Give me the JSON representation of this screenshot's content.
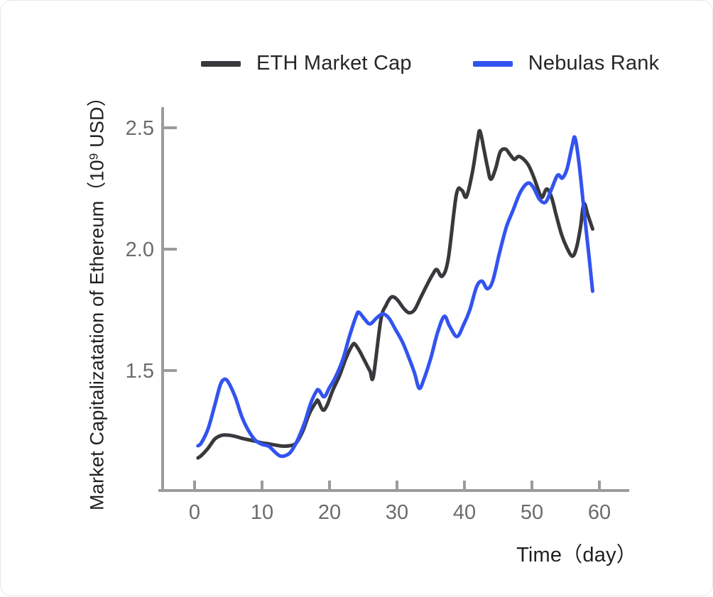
{
  "chart_data": {
    "type": "line",
    "title": "",
    "xlabel": "Time（day）",
    "ylabel": "Market Capitalizatation of Ethereum（10⁹ USD）",
    "ylabel_parts": {
      "prefix": "Market Capitalizatation of Ethereum（10",
      "sup": "9",
      "suffix": " USD）"
    },
    "x_ticks": {
      "values": [
        0,
        10,
        20,
        30,
        40,
        50,
        60
      ],
      "labels": [
        "0",
        "10",
        "20",
        "30",
        "40",
        "50",
        "60"
      ]
    },
    "y_ticks": {
      "values": [
        1.5,
        2.0,
        2.5
      ],
      "labels": [
        "1.5",
        "2.0",
        "2.5"
      ]
    },
    "xlim": [
      -5.4,
      64.4
    ],
    "ylim": [
      1.0,
      2.58
    ],
    "grid": false,
    "legend": {
      "position": "top-center",
      "entries": [
        "ETH Market Cap",
        "Nebulas Rank"
      ]
    },
    "axis_color": "#999b9d",
    "tick_label_color": "#6b6b6b",
    "series": [
      {
        "name": "ETH Market Cap",
        "color": "#39393d",
        "line_width": 5,
        "points": [
          [
            0.5,
            1.14
          ],
          [
            1,
            1.15
          ],
          [
            2,
            1.18
          ],
          [
            3,
            1.218
          ],
          [
            4,
            1.233
          ],
          [
            5,
            1.234
          ],
          [
            6,
            1.229
          ],
          [
            7,
            1.221
          ],
          [
            8,
            1.215
          ],
          [
            9,
            1.209
          ],
          [
            10,
            1.202
          ],
          [
            11,
            1.198
          ],
          [
            12,
            1.193
          ],
          [
            13,
            1.189
          ],
          [
            14,
            1.19
          ],
          [
            15,
            1.2
          ],
          [
            16,
            1.248
          ],
          [
            17,
            1.322
          ],
          [
            18,
            1.37
          ],
          [
            18.3,
            1.376
          ],
          [
            19,
            1.338
          ],
          [
            19.6,
            1.355
          ],
          [
            20.5,
            1.42
          ],
          [
            21.5,
            1.48
          ],
          [
            22.5,
            1.555
          ],
          [
            23.4,
            1.605
          ],
          [
            23.8,
            1.608
          ],
          [
            24.5,
            1.578
          ],
          [
            25.3,
            1.535
          ],
          [
            26,
            1.498
          ],
          [
            26.5,
            1.476
          ],
          [
            27.6,
            1.708
          ],
          [
            28.4,
            1.77
          ],
          [
            29.2,
            1.803
          ],
          [
            30,
            1.793
          ],
          [
            31,
            1.756
          ],
          [
            31.8,
            1.738
          ],
          [
            32.6,
            1.75
          ],
          [
            33.5,
            1.8
          ],
          [
            34.4,
            1.85
          ],
          [
            35.3,
            1.896
          ],
          [
            35.9,
            1.916
          ],
          [
            36.7,
            1.889
          ],
          [
            37.6,
            1.96
          ],
          [
            38.8,
            2.224
          ],
          [
            39.6,
            2.243
          ],
          [
            40.3,
            2.216
          ],
          [
            41.2,
            2.32
          ],
          [
            41.9,
            2.44
          ],
          [
            42.3,
            2.487
          ],
          [
            42.9,
            2.41
          ],
          [
            43.4,
            2.34
          ],
          [
            43.9,
            2.288
          ],
          [
            44.6,
            2.33
          ],
          [
            45.3,
            2.4
          ],
          [
            46.1,
            2.412
          ],
          [
            46.8,
            2.388
          ],
          [
            47.4,
            2.37
          ],
          [
            48,
            2.382
          ],
          [
            48.7,
            2.372
          ],
          [
            49.5,
            2.345
          ],
          [
            50.3,
            2.295
          ],
          [
            51,
            2.24
          ],
          [
            51.5,
            2.213
          ],
          [
            52.2,
            2.248
          ],
          [
            52.9,
            2.215
          ],
          [
            53.6,
            2.14
          ],
          [
            54.4,
            2.06
          ],
          [
            55.2,
            2.005
          ],
          [
            56,
            1.971
          ],
          [
            56.6,
            2.005
          ],
          [
            57.2,
            2.09
          ],
          [
            57.7,
            2.187
          ],
          [
            58.3,
            2.14
          ],
          [
            59,
            2.083
          ]
        ]
      },
      {
        "name": "Nebulas Rank",
        "color": "#3353f0",
        "line_width": 5,
        "points": [
          [
            0.5,
            1.19
          ],
          [
            1,
            1.202
          ],
          [
            2,
            1.26
          ],
          [
            3,
            1.358
          ],
          [
            3.8,
            1.44
          ],
          [
            4.4,
            1.464
          ],
          [
            5,
            1.452
          ],
          [
            6,
            1.393
          ],
          [
            7,
            1.31
          ],
          [
            8,
            1.252
          ],
          [
            9,
            1.213
          ],
          [
            10,
            1.196
          ],
          [
            11,
            1.188
          ],
          [
            12,
            1.162
          ],
          [
            12.7,
            1.148
          ],
          [
            13.4,
            1.149
          ],
          [
            14.2,
            1.163
          ],
          [
            15.2,
            1.21
          ],
          [
            16.3,
            1.285
          ],
          [
            17.2,
            1.364
          ],
          [
            18,
            1.412
          ],
          [
            18.4,
            1.42
          ],
          [
            19.2,
            1.392
          ],
          [
            20,
            1.43
          ],
          [
            20.9,
            1.474
          ],
          [
            22,
            1.548
          ],
          [
            23,
            1.645
          ],
          [
            24,
            1.728
          ],
          [
            24.4,
            1.739
          ],
          [
            25.2,
            1.712
          ],
          [
            26,
            1.692
          ],
          [
            27,
            1.717
          ],
          [
            27.9,
            1.733
          ],
          [
            28.8,
            1.716
          ],
          [
            29.8,
            1.668
          ],
          [
            30.8,
            1.618
          ],
          [
            31.8,
            1.55
          ],
          [
            32.6,
            1.49
          ],
          [
            33.3,
            1.427
          ],
          [
            34,
            1.465
          ],
          [
            35,
            1.55
          ],
          [
            36,
            1.655
          ],
          [
            37,
            1.723
          ],
          [
            37.8,
            1.683
          ],
          [
            38.9,
            1.64
          ],
          [
            39.9,
            1.69
          ],
          [
            40.8,
            1.75
          ],
          [
            41.8,
            1.845
          ],
          [
            42.6,
            1.868
          ],
          [
            43.4,
            1.837
          ],
          [
            44.2,
            1.87
          ],
          [
            45.2,
            1.985
          ],
          [
            46.2,
            2.09
          ],
          [
            47.2,
            2.16
          ],
          [
            48.3,
            2.235
          ],
          [
            49.4,
            2.272
          ],
          [
            50.2,
            2.255
          ],
          [
            51.1,
            2.206
          ],
          [
            52,
            2.193
          ],
          [
            52.8,
            2.24
          ],
          [
            53.6,
            2.295
          ],
          [
            54,
            2.306
          ],
          [
            54.5,
            2.293
          ],
          [
            55.2,
            2.33
          ],
          [
            56,
            2.43
          ],
          [
            56.4,
            2.458
          ],
          [
            57,
            2.35
          ],
          [
            57.8,
            2.14
          ],
          [
            58.5,
            1.96
          ],
          [
            59,
            1.827
          ]
        ]
      }
    ]
  }
}
